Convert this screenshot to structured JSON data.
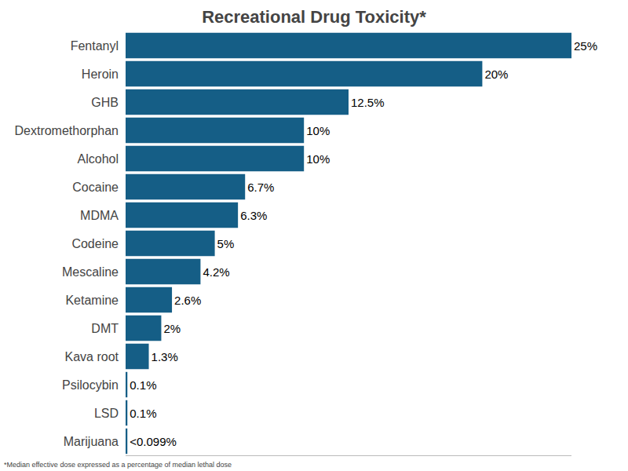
{
  "chart_data": {
    "type": "bar",
    "orientation": "horizontal",
    "title": "Recreational Drug Toxicity*",
    "annotation": "*Median effective dose expressed as a percentage of median lethal dose",
    "categories": [
      "Fentanyl",
      "Heroin",
      "GHB",
      "Dextromethorphan",
      "Alcohol",
      "Cocaine",
      "MDMA",
      "Codeine",
      "Mescaline",
      "Ketamine",
      "DMT",
      "Kava root",
      "Psilocybin",
      "LSD",
      "Marijuana"
    ],
    "values": [
      25,
      20,
      12.5,
      10,
      10,
      6.7,
      6.3,
      5,
      4.2,
      2.6,
      2,
      1.3,
      0.1,
      0.1,
      0.099
    ],
    "value_labels": [
      "25%",
      "20%",
      "12.5%",
      "10%",
      "10%",
      "6.7%",
      "6.3%",
      "5%",
      "4.2%",
      "2.6%",
      "2%",
      "1.3%",
      "0.1%",
      "0.1%",
      "<0.099%"
    ],
    "data_labels": true,
    "color": "#155e86",
    "xlim": [
      0,
      25
    ],
    "xticks": [],
    "tick_labels": "y",
    "grid": false
  }
}
